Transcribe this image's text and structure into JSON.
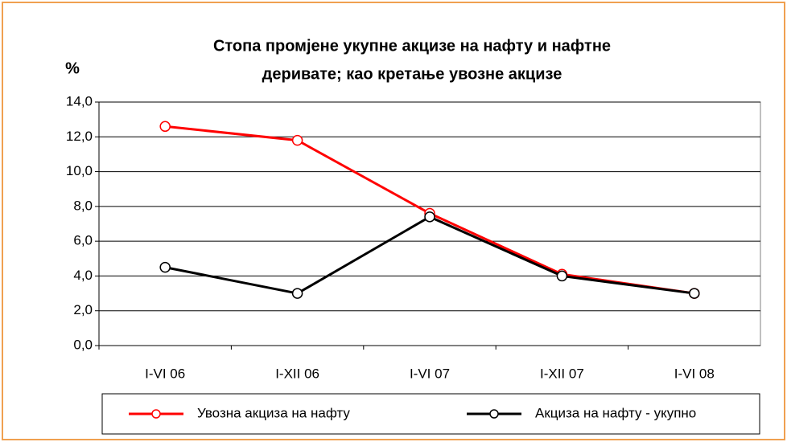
{
  "chart_data": {
    "type": "line",
    "title": [
      "Стопа промјене укупне акцизе на нафту и нафтне",
      "деривате; као кретање увозне акцизе"
    ],
    "y_label": "%",
    "categories": [
      "I-VI 06",
      "I-XII 06",
      "I-VI 07",
      "I-XII 07",
      "I-VI 08"
    ],
    "series": [
      {
        "name": "Увозна акциза на нафту",
        "color": "#ff0000",
        "values": [
          12.6,
          11.8,
          7.6,
          4.1,
          3.0
        ]
      },
      {
        "name": "Акциза на нафту - укупно",
        "color": "#000000",
        "values": [
          4.5,
          3.0,
          7.4,
          4.0,
          3.0
        ]
      }
    ],
    "ylim": [
      0,
      14
    ],
    "yticks": [
      {
        "value": 0,
        "label": "0,0"
      },
      {
        "value": 2,
        "label": "2,0"
      },
      {
        "value": 4,
        "label": "4,0"
      },
      {
        "value": 6,
        "label": "6,0"
      },
      {
        "value": 8,
        "label": "8,0"
      },
      {
        "value": 10,
        "label": "10,0"
      },
      {
        "value": 12,
        "label": "12,0"
      },
      {
        "value": 14,
        "label": "14,0"
      }
    ],
    "grid": true,
    "legend": "bottom"
  }
}
